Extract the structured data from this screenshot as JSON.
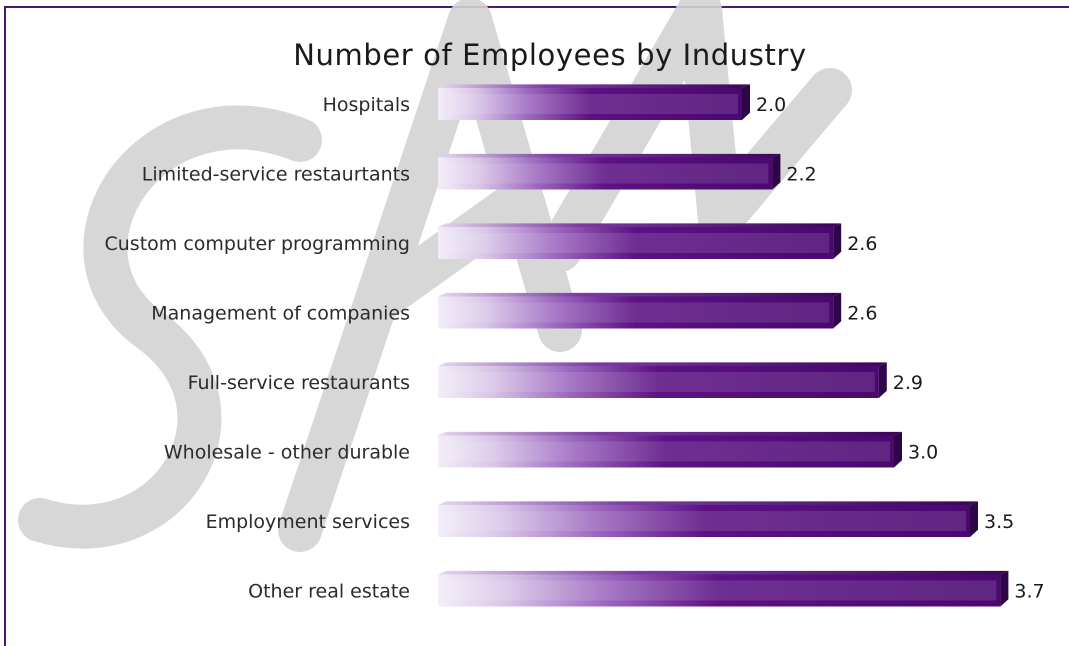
{
  "chart_data": {
    "type": "bar",
    "orientation": "horizontal",
    "title": "Number of Employees by Industry",
    "categories": [
      "Hospitals",
      "Limited-service restaurtants",
      "Custom computer programming",
      "Management of companies",
      "Full-service restaurants",
      "Wholesale - other durable",
      "Employment services",
      "Other real estate"
    ],
    "values": [
      2.0,
      2.2,
      2.6,
      2.6,
      2.9,
      3.0,
      3.5,
      3.7
    ],
    "value_labels": [
      "2.0",
      "2.2",
      "2.6",
      "2.6",
      "2.9",
      "3.0",
      "3.5",
      "3.7"
    ],
    "xlabel": "",
    "ylabel": "",
    "grid": false,
    "colors": {
      "bar_dark": "#4e0a73",
      "bar_light": "#f2ecf7",
      "bar_shadow": "#2e0547",
      "frame": "#4a1a6e"
    }
  },
  "watermark": "SAMPLE"
}
